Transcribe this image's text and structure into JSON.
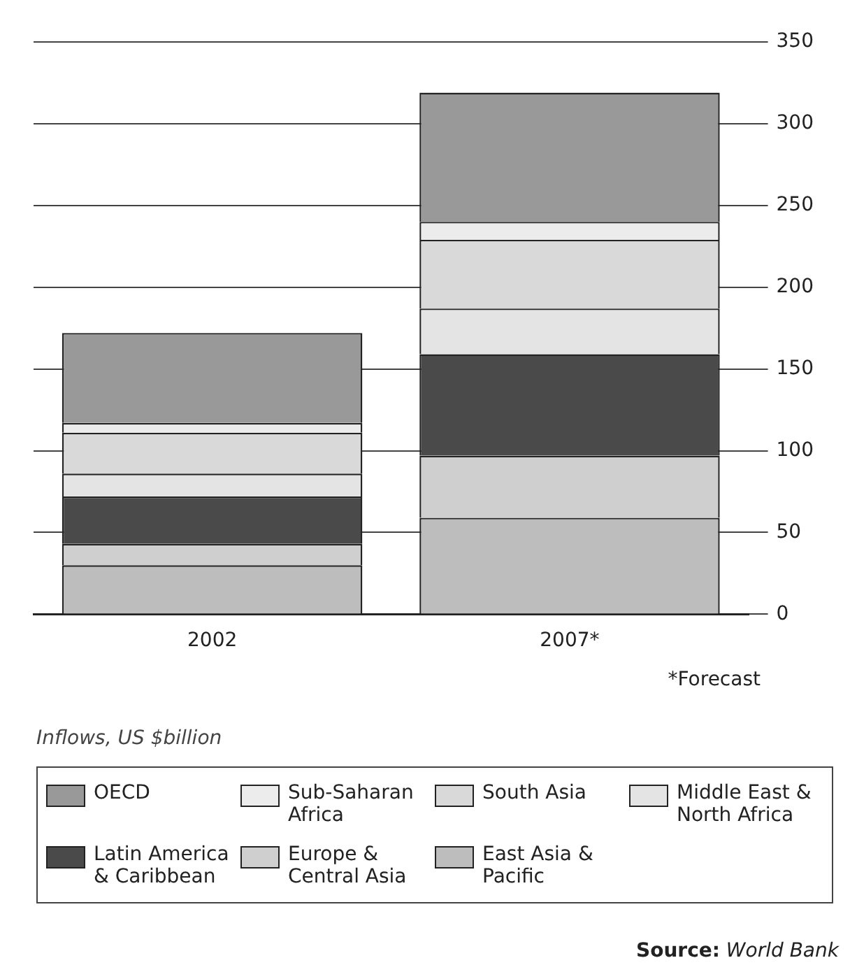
{
  "chart_data": {
    "type": "bar",
    "stacked": true,
    "categories": [
      "2002",
      "2007*"
    ],
    "series": [
      {
        "name": "East Asia & Pacific",
        "color": "#bdbdbd",
        "values": [
          30,
          59
        ]
      },
      {
        "name": "Europe & Central Asia",
        "color": "#cfcfcf",
        "values": [
          13,
          38
        ]
      },
      {
        "name": "Latin America & Caribbean",
        "color": "#4a4a4a",
        "values": [
          29,
          62
        ]
      },
      {
        "name": "Middle East & North Africa",
        "color": "#e4e4e4",
        "values": [
          14,
          28
        ]
      },
      {
        "name": "South Asia",
        "color": "#d9d9d9",
        "values": [
          25,
          42
        ]
      },
      {
        "name": "Sub-Saharan Africa",
        "color": "#ececec",
        "values": [
          6,
          11
        ]
      },
      {
        "name": "OECD",
        "color": "#999999",
        "values": [
          55,
          79
        ]
      }
    ],
    "ylim": [
      0,
      350
    ],
    "yticks": [
      0,
      50,
      100,
      150,
      200,
      250,
      300,
      350
    ],
    "grid": "y",
    "legend": "bottom",
    "annotations": [
      "*Forecast",
      "Inflows, US $billion",
      "Source: World Bank"
    ]
  }
}
